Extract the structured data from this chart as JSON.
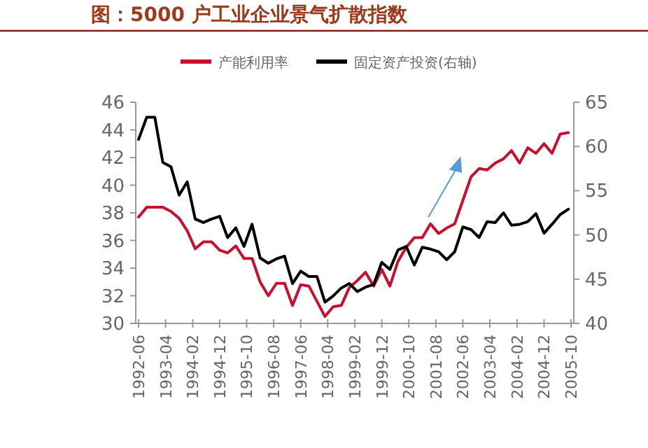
{
  "chart_data": {
    "type": "line",
    "title": "图：5000 户工业企业景气扩散指数",
    "x": [
      "1992-06",
      "1992-09",
      "1992-12",
      "1993-03",
      "1993-06",
      "1993-09",
      "1993-12",
      "1994-03",
      "1994-06",
      "1994-09",
      "1994-12",
      "1995-03",
      "1995-06",
      "1995-09",
      "1995-12",
      "1996-03",
      "1996-06",
      "1996-09",
      "1996-12",
      "1997-03",
      "1997-06",
      "1997-09",
      "1997-12",
      "1998-03",
      "1998-06",
      "1998-09",
      "1998-12",
      "1999-03",
      "1999-06",
      "1999-09",
      "1999-12",
      "2000-03",
      "2000-06",
      "2000-09",
      "2000-12",
      "2001-03",
      "2001-06",
      "2001-09",
      "2001-12",
      "2002-03",
      "2002-06",
      "2002-09",
      "2002-12",
      "2003-03",
      "2003-06",
      "2003-09",
      "2003-12",
      "2004-03",
      "2004-06",
      "2004-09",
      "2004-12",
      "2005-03",
      "2005-06",
      "2005-09"
    ],
    "series": [
      {
        "name": "产能利用率",
        "color": "#c8102e",
        "values": [
          37.7,
          38.4,
          38.4,
          38.4,
          38.1,
          37.6,
          36.7,
          35.4,
          35.9,
          35.9,
          35.3,
          35.1,
          35.6,
          34.7,
          34.7,
          33.0,
          32.0,
          32.9,
          32.9,
          31.3,
          32.8,
          32.7,
          31.6,
          30.5,
          31.2,
          31.3,
          32.6,
          33.1,
          33.7,
          32.7,
          33.9,
          32.7,
          34.5,
          35.5,
          36.2,
          36.2,
          37.2,
          36.5,
          36.9,
          37.2,
          38.9,
          40.6,
          41.2,
          41.1,
          41.6,
          41.9,
          42.5,
          41.6,
          42.7,
          42.3,
          43.0,
          42.3,
          43.7,
          43.8
        ]
      },
      {
        "name": "固定资产投资(右轴)",
        "color": "#000000",
        "axis": "y2",
        "values": [
          60.8,
          63.3,
          63.3,
          58.2,
          57.7,
          54.5,
          56.0,
          51.8,
          51.4,
          51.8,
          52.1,
          49.7,
          50.8,
          48.7,
          51.2,
          47.4,
          46.8,
          47.3,
          47.6,
          44.5,
          45.9,
          45.3,
          45.3,
          42.4,
          43.1,
          44.0,
          44.5,
          43.6,
          44.1,
          44.4,
          46.9,
          46.1,
          48.3,
          48.7,
          46.6,
          48.6,
          48.4,
          48.1,
          47.2,
          48.1,
          50.9,
          50.6,
          49.7,
          51.5,
          51.4,
          52.5,
          51.1,
          51.2,
          51.5,
          52.4,
          50.2,
          51.2,
          52.3,
          52.9
        ]
      }
    ],
    "xlim": [
      "1992-06",
      "2005-10"
    ],
    "xticks": [
      {
        "value": "1992-06",
        "label": "1992-06"
      },
      {
        "value": "1993-04",
        "label": "1993-04"
      },
      {
        "value": "1994-02",
        "label": "1994-02"
      },
      {
        "value": "1994-12",
        "label": "1994-12"
      },
      {
        "value": "1995-10",
        "label": "1995-10"
      },
      {
        "value": "1996-08",
        "label": "1996-08"
      },
      {
        "value": "1997-06",
        "label": "1997-06"
      },
      {
        "value": "1998-04",
        "label": "1998-04"
      },
      {
        "value": "1999-02",
        "label": "1999-02"
      },
      {
        "value": "1999-12",
        "label": "1999-12"
      },
      {
        "value": "2000-10",
        "label": "2000-10"
      },
      {
        "value": "2001-08",
        "label": "2001-08"
      },
      {
        "value": "2002-06",
        "label": "2002-06"
      },
      {
        "value": "2003-04",
        "label": "2003-04"
      },
      {
        "value": "2004-02",
        "label": "2004-02"
      },
      {
        "value": "2004-12",
        "label": "2004-12"
      },
      {
        "value": "2005-10",
        "label": "2005-10"
      }
    ],
    "ylim": [
      30,
      46
    ],
    "yticks": [
      30,
      32,
      34,
      36,
      38,
      40,
      42,
      44,
      46
    ],
    "y2lim": [
      40,
      65
    ],
    "y2ticks": [
      40,
      45,
      50,
      55,
      60,
      65
    ],
    "grid": false,
    "legend": "top",
    "marker": "none",
    "line_style": "solid"
  }
}
